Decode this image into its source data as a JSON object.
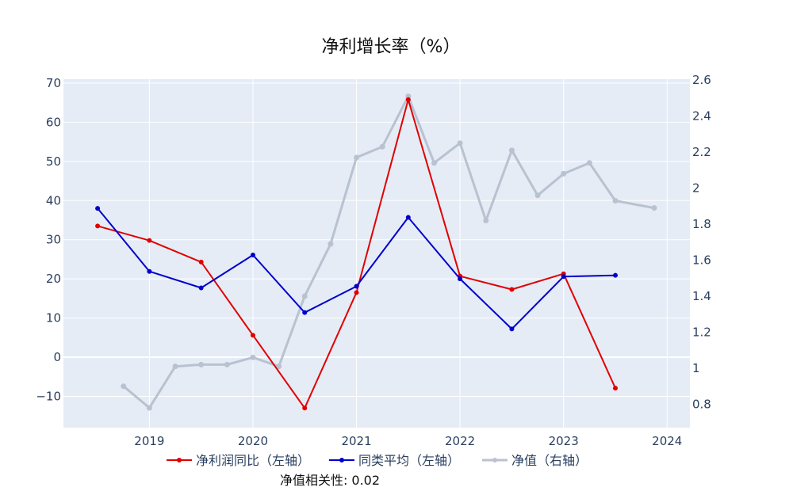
{
  "chart_data": {
    "type": "line",
    "title": "净利增长率（%）",
    "xlabel": "",
    "ylabel": "",
    "x_range": [
      2018.17,
      2024.22
    ],
    "x_ticks": [
      2019,
      2020,
      2021,
      2022,
      2023,
      2024
    ],
    "y_left": {
      "range": [
        -18,
        71
      ],
      "ticks": [
        -10,
        0,
        10,
        20,
        30,
        40,
        50,
        60,
        70
      ]
    },
    "y_right": {
      "range": [
        0.67,
        2.605
      ],
      "ticks": [
        0.8,
        1,
        1.2,
        1.4,
        1.6,
        1.8,
        2,
        2.2,
        2.4,
        2.6
      ]
    },
    "grid": true,
    "legend_position": "bottom",
    "series": [
      {
        "name": "净利润同比（左轴）",
        "axis": "left",
        "color": "#e00000",
        "x": [
          2018.5,
          2019.0,
          2019.5,
          2020.0,
          2020.5,
          2021.0,
          2021.5,
          2022.0,
          2022.5,
          2023.0,
          2023.5
        ],
        "y": [
          33.5,
          29.8,
          24.3,
          5.6,
          -13.0,
          16.5,
          65.8,
          20.7,
          17.3,
          21.3,
          -7.9
        ]
      },
      {
        "name": "同类平均（左轴）",
        "axis": "left",
        "color": "#0000cc",
        "x": [
          2018.5,
          2019.0,
          2019.5,
          2020.0,
          2020.5,
          2021.0,
          2021.5,
          2022.0,
          2022.5,
          2023.0,
          2023.5
        ],
        "y": [
          38.0,
          21.9,
          17.7,
          26.1,
          11.4,
          18.1,
          35.7,
          20.0,
          7.2,
          20.6,
          20.9
        ]
      },
      {
        "name": "净值（右轴）",
        "axis": "right",
        "color": "#b8c2d0",
        "x": [
          2018.75,
          2019.0,
          2019.25,
          2019.5,
          2019.75,
          2020.0,
          2020.25,
          2020.5,
          2020.75,
          2021.0,
          2021.25,
          2021.5,
          2021.75,
          2022.0,
          2022.25,
          2022.5,
          2022.75,
          2023.0,
          2023.25,
          2023.5,
          2023.875
        ],
        "y": [
          0.9,
          0.78,
          1.01,
          1.02,
          1.02,
          1.06,
          1.01,
          1.4,
          1.69,
          2.17,
          2.23,
          2.51,
          2.14,
          2.25,
          1.82,
          2.21,
          1.96,
          2.08,
          2.14,
          1.93,
          1.89
        ]
      }
    ],
    "annotation": "净值相关性: 0.02"
  }
}
